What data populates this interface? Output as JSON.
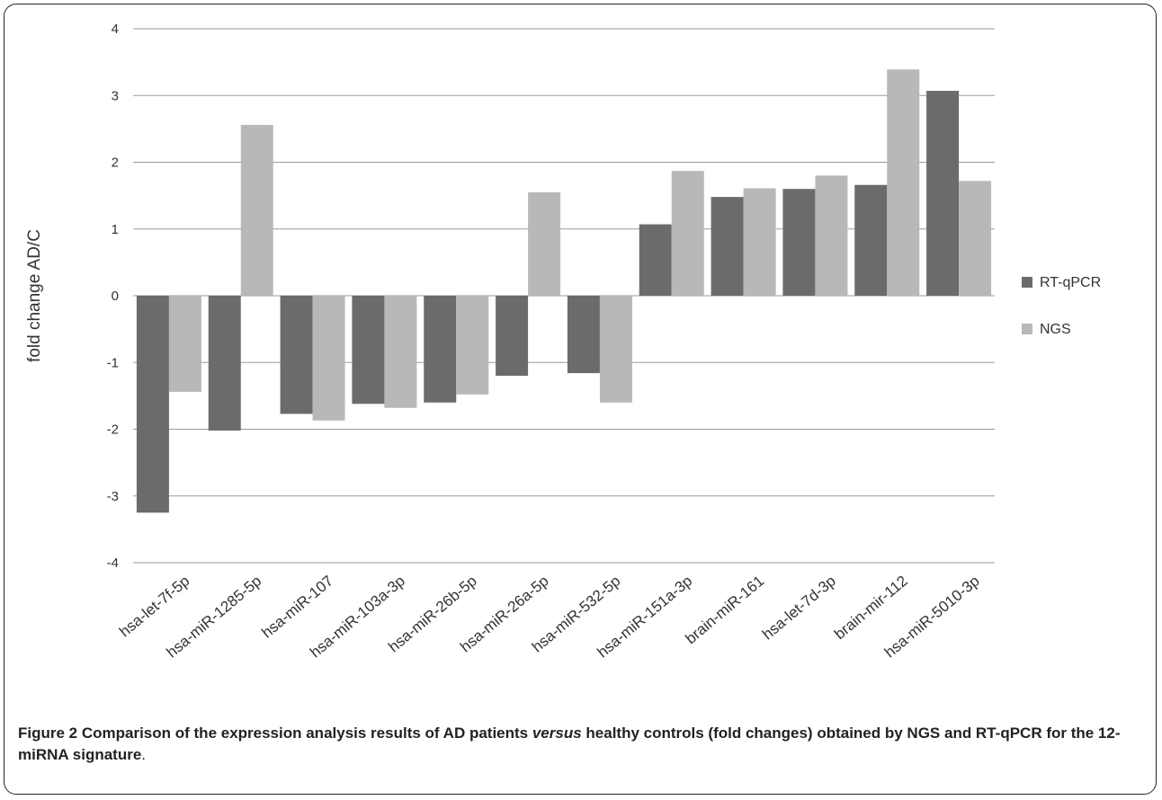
{
  "chart_data": {
    "type": "bar",
    "ylabel": "fold change AD/C",
    "ylim": [
      -4,
      4
    ],
    "yticks": [
      4,
      3,
      2,
      1,
      0,
      -1,
      -2,
      -3,
      -4
    ],
    "grid": true,
    "legend_position": "right",
    "categories": [
      "hsa-let-7f-5p",
      "hsa-miR-1285-5p",
      "hsa-miR-107",
      "hsa-miR-103a-3p",
      "hsa-miR-26b-5p",
      "hsa-miR-26a-5p",
      "hsa-miR-532-5p",
      "hsa-miR-151a-3p",
      "brain-miR-161",
      "hsa-let-7d-3p",
      "brain-mir-112",
      "hsa-miR-5010-3p"
    ],
    "series": [
      {
        "name": "RT-qPCR",
        "color": "#6b6b6b",
        "values": [
          -3.25,
          -2.02,
          -1.77,
          -1.62,
          -1.6,
          -1.2,
          -1.16,
          1.07,
          1.48,
          1.6,
          1.66,
          3.07
        ]
      },
      {
        "name": "NGS",
        "color": "#b8b8b8",
        "values": [
          -1.44,
          2.56,
          -1.87,
          -1.68,
          -1.48,
          1.55,
          -1.6,
          1.87,
          1.61,
          1.8,
          3.39,
          1.72
        ]
      }
    ]
  },
  "caption": {
    "label": "Figure 2",
    "part1": " Comparison of the expression analysis results of AD patients ",
    "italic": "versus",
    "part2": " healthy controls (fold changes) obtained by NGS and RT-qPCR for the 12-miRNA signature",
    "end": "."
  }
}
